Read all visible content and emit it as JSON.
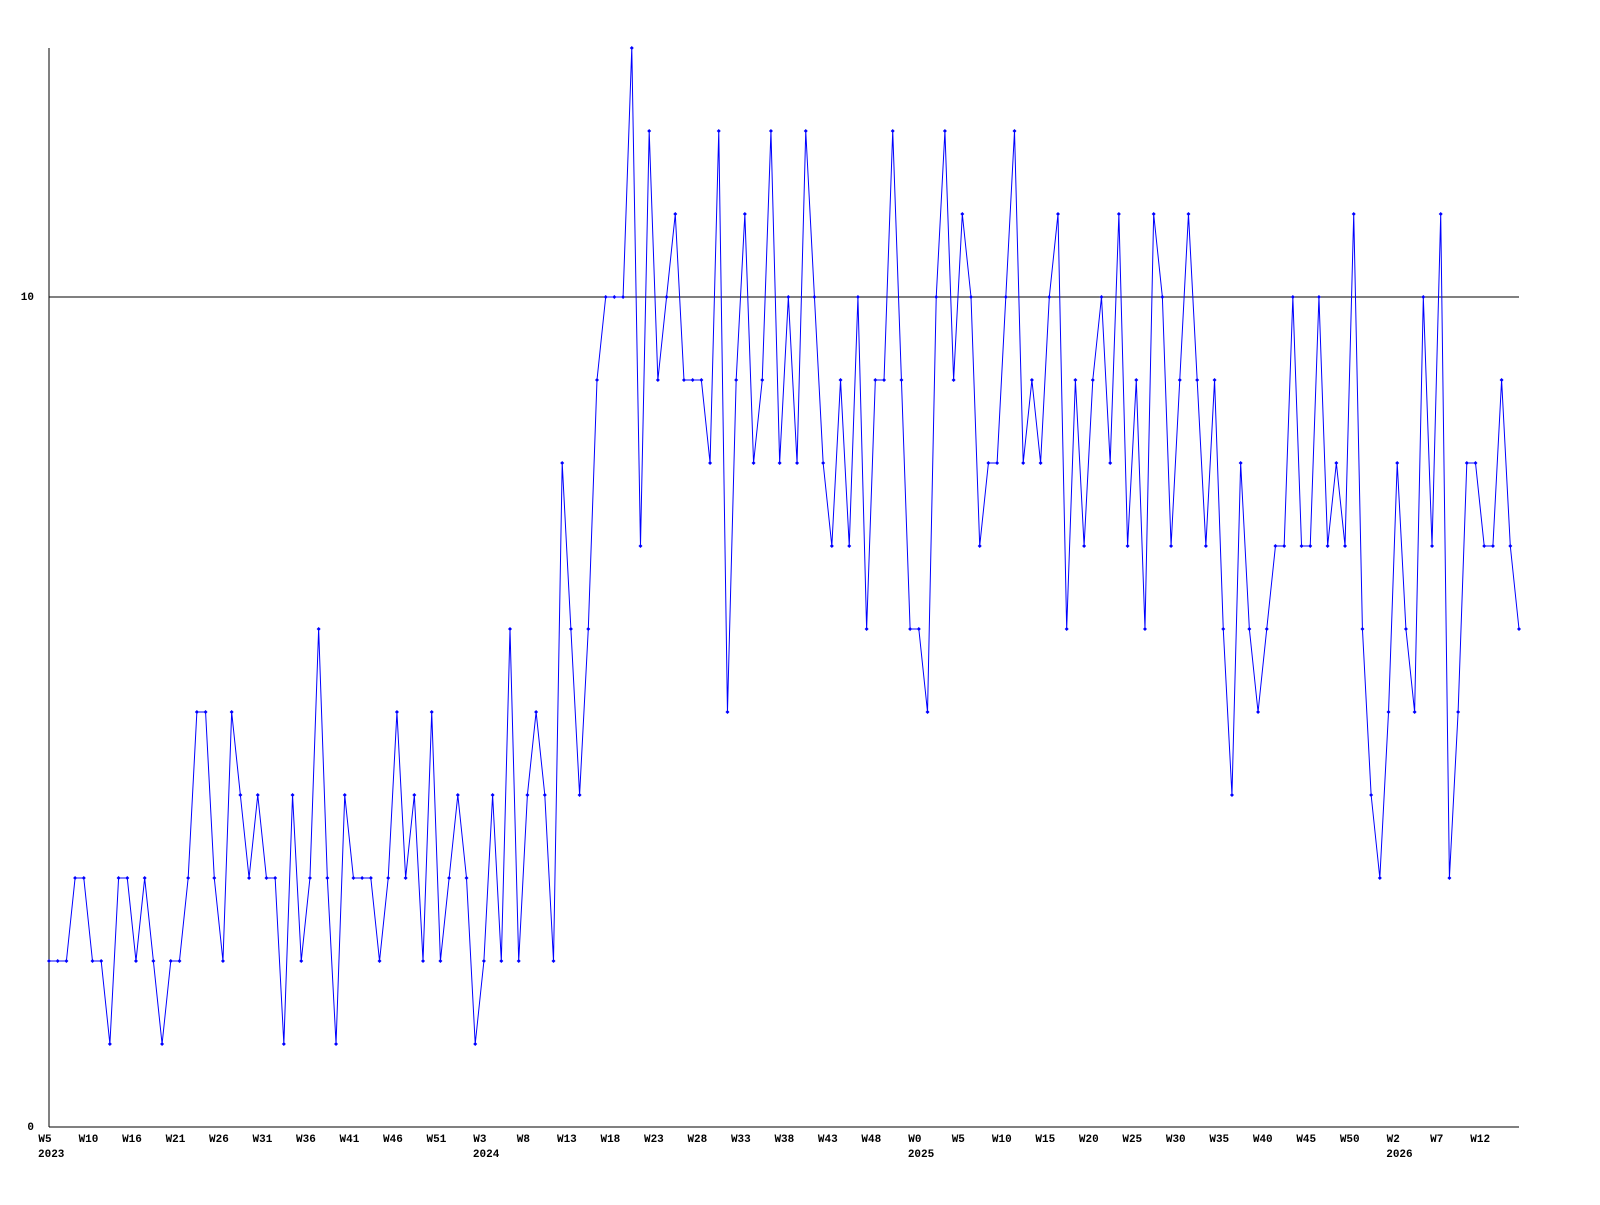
{
  "chart_data": {
    "type": "line",
    "color": "#0000ff",
    "axis_color": "#000000",
    "categories": [
      "W5",
      null,
      null,
      null,
      null,
      "W10",
      null,
      null,
      null,
      null,
      "W16",
      null,
      null,
      null,
      null,
      "W21",
      null,
      null,
      null,
      null,
      "W26",
      null,
      null,
      null,
      null,
      "W31",
      null,
      null,
      null,
      null,
      "W36",
      null,
      null,
      null,
      null,
      "W41",
      null,
      null,
      null,
      null,
      "W46",
      null,
      null,
      null,
      null,
      "W51",
      null,
      null,
      null,
      null,
      "W3",
      null,
      null,
      null,
      null,
      "W8",
      null,
      null,
      null,
      null,
      "W13",
      null,
      null,
      null,
      null,
      "W18",
      null,
      null,
      null,
      null,
      "W23",
      null,
      null,
      null,
      null,
      "W28",
      null,
      null,
      null,
      null,
      "W33",
      null,
      null,
      null,
      null,
      "W38",
      null,
      null,
      null,
      null,
      "W43",
      null,
      null,
      null,
      null,
      "W48",
      null,
      null,
      null,
      null,
      "W0",
      null,
      null,
      null,
      null,
      "W5",
      null,
      null,
      null,
      null,
      "W10",
      null,
      null,
      null,
      null,
      "W15",
      null,
      null,
      null,
      null,
      "W20",
      null,
      null,
      null,
      null,
      "W25",
      null,
      null,
      null,
      null,
      "W30",
      null,
      null,
      null,
      null,
      "W35",
      null,
      null,
      null,
      null,
      "W40",
      null,
      null,
      null,
      null,
      "W45",
      null,
      null,
      null,
      null,
      "W50",
      null,
      null,
      null,
      null,
      "W2",
      null,
      null,
      null,
      null,
      "W7",
      null,
      null,
      null,
      null,
      "W12",
      null,
      null,
      null,
      null
    ],
    "year_labels": [
      "2023",
      null,
      null,
      null,
      null,
      null,
      null,
      null,
      null,
      null,
      null,
      null,
      null,
      null,
      null,
      null,
      null,
      null,
      null,
      null,
      null,
      null,
      null,
      null,
      null,
      null,
      null,
      null,
      null,
      null,
      null,
      null,
      null,
      null,
      null,
      null,
      null,
      null,
      null,
      null,
      null,
      null,
      null,
      null,
      null,
      null,
      null,
      null,
      null,
      null,
      "2024",
      null,
      null,
      null,
      null,
      null,
      null,
      null,
      null,
      null,
      null,
      null,
      null,
      null,
      null,
      null,
      null,
      null,
      null,
      null,
      null,
      null,
      null,
      null,
      null,
      null,
      null,
      null,
      null,
      null,
      null,
      null,
      null,
      null,
      null,
      null,
      null,
      null,
      null,
      null,
      null,
      null,
      null,
      null,
      null,
      null,
      null,
      null,
      null,
      null,
      "2025",
      null,
      null,
      null,
      null,
      null,
      null,
      null,
      null,
      null,
      null,
      null,
      null,
      null,
      null,
      null,
      null,
      null,
      null,
      null,
      null,
      null,
      null,
      null,
      null,
      null,
      null,
      null,
      null,
      null,
      null,
      null,
      null,
      null,
      null,
      null,
      null,
      null,
      null,
      null,
      null,
      null,
      null,
      null,
      null,
      null,
      null,
      null,
      null,
      null,
      null,
      null,
      null,
      null,
      null,
      "2026",
      null,
      null,
      null,
      null,
      null,
      null,
      null,
      null,
      null,
      null,
      null,
      null,
      null,
      null
    ],
    "values": [
      2,
      2,
      2,
      3,
      3,
      2,
      2,
      1,
      3,
      3,
      2,
      3,
      2,
      1,
      2,
      2,
      3,
      5,
      5,
      3,
      2,
      5,
      4,
      3,
      4,
      3,
      3,
      1,
      4,
      2,
      3,
      6,
      3,
      1,
      4,
      3,
      3,
      3,
      2,
      3,
      5,
      3,
      4,
      2,
      5,
      2,
      3,
      4,
      3,
      1,
      2,
      4,
      2,
      6,
      2,
      4,
      5,
      4,
      2,
      8,
      6,
      4,
      6,
      9,
      10,
      10,
      10,
      13,
      7,
      12,
      9,
      10,
      11,
      9,
      9,
      9,
      8,
      12,
      5,
      9,
      11,
      8,
      9,
      12,
      8,
      10,
      8,
      12,
      10,
      8,
      7,
      9,
      7,
      10,
      6,
      9,
      9,
      12,
      9,
      6,
      6,
      5,
      10,
      12,
      9,
      11,
      10,
      7,
      8,
      8,
      10,
      12,
      8,
      9,
      8,
      10,
      11,
      6,
      9,
      7,
      9,
      10,
      8,
      11,
      7,
      9,
      6,
      11,
      10,
      7,
      9,
      11,
      9,
      7,
      9,
      6,
      4,
      8,
      6,
      5,
      6,
      7,
      7,
      10,
      7,
      7,
      10,
      7,
      8,
      7,
      11,
      6,
      4,
      3,
      5,
      8,
      6,
      5,
      10,
      7,
      11,
      3,
      5,
      8,
      8,
      7,
      7,
      9,
      7,
      6
    ],
    "ylim": [
      0,
      13
    ],
    "yticks": [
      0,
      10
    ],
    "grid": true
  }
}
